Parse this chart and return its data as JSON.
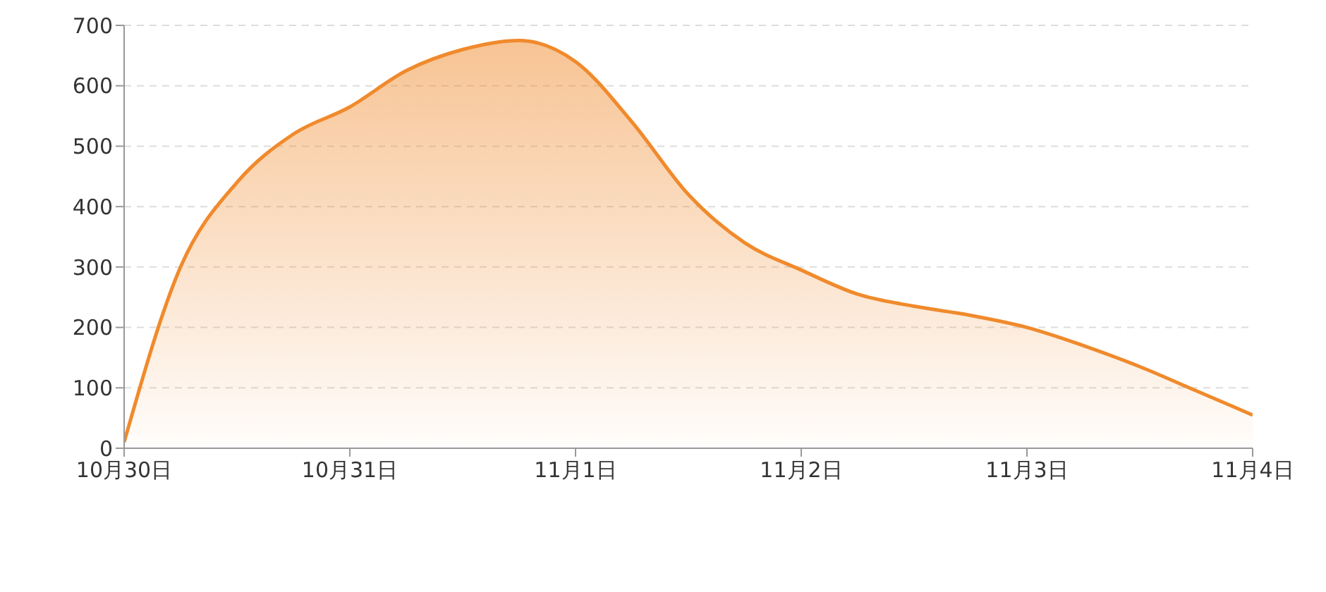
{
  "chart_data": {
    "type": "area",
    "categories": [
      "10月30日",
      null,
      null,
      null,
      "10月31日",
      null,
      null,
      null,
      "11月1日",
      null,
      null,
      null,
      "11月2日",
      null,
      null,
      null,
      "11月3日",
      null,
      null,
      null,
      "11月4日"
    ],
    "values": [
      10,
      300,
      440,
      520,
      565,
      625,
      660,
      675,
      640,
      540,
      420,
      340,
      295,
      255,
      235,
      220,
      200,
      170,
      135,
      95,
      55
    ],
    "color": "#f08a2c",
    "ylim": [
      0,
      700
    ],
    "yticks": [
      0,
      100,
      200,
      300,
      400,
      500,
      600,
      700
    ],
    "grid": "y"
  }
}
